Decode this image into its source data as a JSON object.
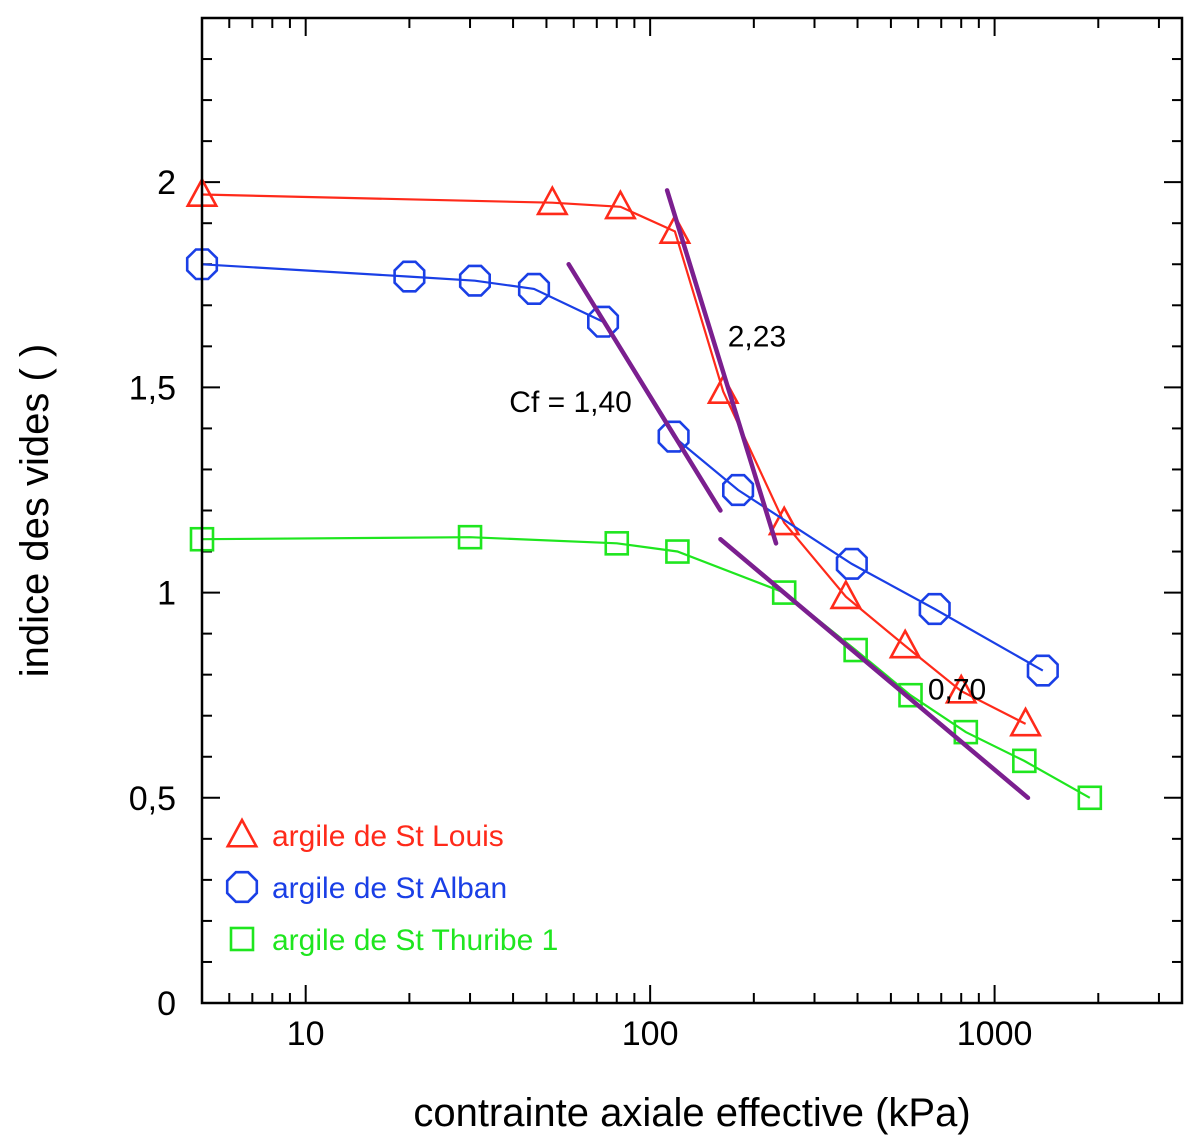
{
  "chart_data": {
    "type": "scatter",
    "x_scale": "log",
    "xlabel": "contrainte axiale effective (kPa)",
    "ylabel": "indice des vides ( )",
    "xlim": [
      5,
      3500
    ],
    "ylim": [
      0,
      2.4
    ],
    "x_ticks": [
      {
        "value": 10,
        "label": "10"
      },
      {
        "value": 100,
        "label": "100"
      },
      {
        "value": 1000,
        "label": "1000"
      }
    ],
    "y_ticks": [
      {
        "value": 0,
        "label": "0"
      },
      {
        "value": 0.5,
        "label": "0,5"
      },
      {
        "value": 1,
        "label": "1"
      },
      {
        "value": 1.5,
        "label": "1,5"
      },
      {
        "value": 2,
        "label": "2"
      }
    ],
    "series": [
      {
        "name": "argile de St Louis",
        "marker": "triangle",
        "color": "#ff2a1a",
        "points": [
          [
            5,
            1.97
          ],
          [
            52,
            1.95
          ],
          [
            82,
            1.94
          ],
          [
            118,
            1.88
          ],
          [
            163,
            1.49
          ],
          [
            245,
            1.17
          ],
          [
            370,
            0.99
          ],
          [
            550,
            0.87
          ],
          [
            800,
            0.76
          ],
          [
            1230,
            0.68
          ]
        ]
      },
      {
        "name": "argile de St Alban",
        "marker": "octagon",
        "color": "#1a3fe6",
        "points": [
          [
            5,
            1.8
          ],
          [
            20,
            1.77
          ],
          [
            31,
            1.76
          ],
          [
            46,
            1.74
          ],
          [
            73,
            1.66
          ],
          [
            117,
            1.38
          ],
          [
            180,
            1.25
          ],
          [
            385,
            1.07
          ],
          [
            670,
            0.96
          ],
          [
            1380,
            0.81
          ]
        ]
      },
      {
        "name": "argile de St Thuribe 1",
        "marker": "square",
        "color": "#1fe61f",
        "points": [
          [
            5,
            1.13
          ],
          [
            30,
            1.135
          ],
          [
            80,
            1.12
          ],
          [
            120,
            1.1
          ],
          [
            245,
            1.0
          ],
          [
            395,
            0.86
          ],
          [
            570,
            0.75
          ],
          [
            825,
            0.66
          ],
          [
            1220,
            0.59
          ],
          [
            1890,
            0.5
          ]
        ]
      }
    ],
    "tangent_lines": [
      {
        "color": "#7b1f8f",
        "from": [
          58,
          1.8
        ],
        "to": [
          160,
          1.2
        ]
      },
      {
        "color": "#7b1f8f",
        "from": [
          112,
          1.98
        ],
        "to": [
          232,
          1.12
        ]
      },
      {
        "color": "#7b1f8f",
        "from": [
          160,
          1.13
        ],
        "to": [
          1250,
          0.5
        ]
      }
    ],
    "annotations": [
      {
        "text": "Cf = 1,40",
        "x": 39,
        "y": 1.44
      },
      {
        "text": "2,23",
        "x": 168,
        "y": 1.6
      },
      {
        "text": "0,70",
        "x": 640,
        "y": 0.74
      }
    ],
    "legend_position": "bottom-left"
  }
}
